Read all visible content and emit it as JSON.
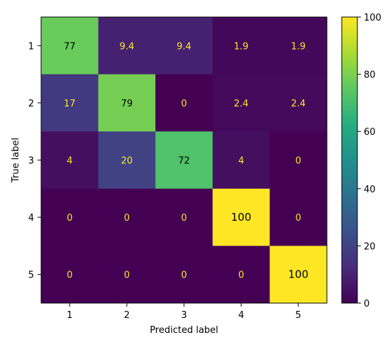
{
  "chart_data": {
    "type": "heatmap",
    "title": "",
    "xlabel": "Predicted label",
    "ylabel": "True label",
    "x_categories": [
      "1",
      "2",
      "3",
      "4",
      "5"
    ],
    "y_categories": [
      "1",
      "2",
      "3",
      "4",
      "5"
    ],
    "values": [
      [
        77,
        9.4,
        9.4,
        1.9,
        1.9
      ],
      [
        17,
        79,
        0,
        2.4,
        2.4
      ],
      [
        4,
        20,
        72,
        4,
        0
      ],
      [
        0,
        0,
        0,
        100,
        0
      ],
      [
        0,
        0,
        0,
        0,
        100
      ]
    ],
    "value_labels": [
      [
        "77",
        "9.4",
        "9.4",
        "1.9",
        "1.9"
      ],
      [
        "17",
        "79",
        "0",
        "2.4",
        "2.4"
      ],
      [
        "4",
        "20",
        "72",
        "4",
        "0"
      ],
      [
        "0",
        "0",
        "0",
        "100",
        "0"
      ],
      [
        "0",
        "0",
        "0",
        "0",
        "100"
      ]
    ],
    "colorscale": "viridis",
    "colorbar": {
      "range": [
        0,
        100
      ],
      "ticks": [
        0,
        20,
        40,
        60,
        80,
        100
      ],
      "tick_labels": [
        "0",
        "20",
        "40",
        "60",
        "80",
        "100"
      ]
    },
    "text_colors": {
      "on_dark": "#fde725",
      "on_light": "#000000"
    }
  }
}
